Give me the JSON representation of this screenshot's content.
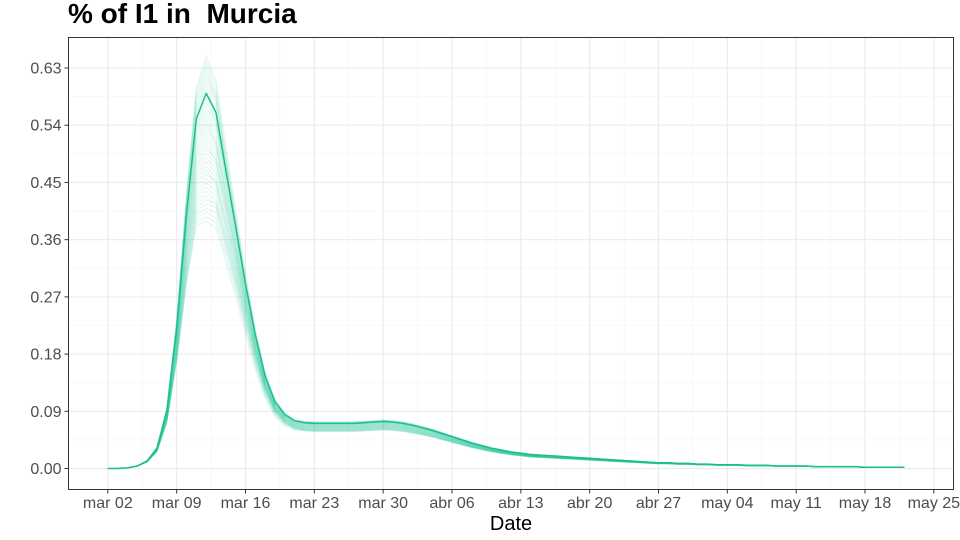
{
  "chart_data": {
    "type": "line",
    "title": "% of I1 in  Murcia",
    "xlabel": "Date",
    "ylabel": "",
    "x_tick_labels": [
      "mar 02",
      "mar 09",
      "mar 16",
      "mar 23",
      "mar 30",
      "abr 06",
      "abr 13",
      "abr 20",
      "abr 27",
      "may 04",
      "may 11",
      "may 18",
      "may 25"
    ],
    "x_tick_days": [
      0,
      7,
      14,
      21,
      28,
      35,
      42,
      49,
      56,
      63,
      70,
      77,
      84
    ],
    "y_ticks": [
      0.0,
      0.09,
      0.18,
      0.27,
      0.36,
      0.45,
      0.54,
      0.63
    ],
    "y_tick_labels": [
      "0.00",
      "0.09",
      "0.18",
      "0.27",
      "0.36",
      "0.45",
      "0.54",
      "0.63"
    ],
    "xlim_days": [
      -4,
      86
    ],
    "ylim": [
      -0.033,
      0.678
    ],
    "grid": true,
    "legend": "none",
    "series_color": "#1abf8f",
    "ensemble_count": 40,
    "main_series": {
      "x_days": [
        0,
        1,
        2,
        3,
        4,
        5,
        6,
        7,
        8,
        9,
        10,
        11,
        12,
        13,
        14,
        15,
        16,
        17,
        18,
        19,
        20,
        21,
        22,
        23,
        24,
        25,
        26,
        27,
        28,
        29,
        30,
        31,
        32,
        33,
        34,
        35,
        36,
        37,
        38,
        39,
        40,
        41,
        42,
        43,
        44,
        45,
        46,
        47,
        48,
        49,
        50,
        51,
        52,
        53,
        54,
        55,
        56,
        57,
        58,
        59,
        60,
        61,
        62,
        63,
        64,
        65,
        66,
        67,
        68,
        69,
        70,
        71,
        72,
        73,
        74,
        75,
        76,
        77,
        78,
        79,
        80,
        81
      ],
      "values": [
        0.0,
        0.0,
        0.001,
        0.004,
        0.012,
        0.032,
        0.09,
        0.22,
        0.4,
        0.55,
        0.59,
        0.56,
        0.47,
        0.38,
        0.29,
        0.21,
        0.145,
        0.105,
        0.085,
        0.075,
        0.072,
        0.071,
        0.071,
        0.071,
        0.071,
        0.071,
        0.072,
        0.073,
        0.074,
        0.073,
        0.071,
        0.068,
        0.064,
        0.06,
        0.055,
        0.05,
        0.045,
        0.04,
        0.036,
        0.032,
        0.029,
        0.026,
        0.024,
        0.022,
        0.021,
        0.02,
        0.019,
        0.018,
        0.017,
        0.016,
        0.015,
        0.014,
        0.013,
        0.012,
        0.011,
        0.01,
        0.009,
        0.009,
        0.008,
        0.008,
        0.007,
        0.007,
        0.006,
        0.006,
        0.006,
        0.005,
        0.005,
        0.005,
        0.004,
        0.004,
        0.004,
        0.004,
        0.003,
        0.003,
        0.003,
        0.003,
        0.003,
        0.002,
        0.002,
        0.002,
        0.002,
        0.002
      ]
    }
  }
}
